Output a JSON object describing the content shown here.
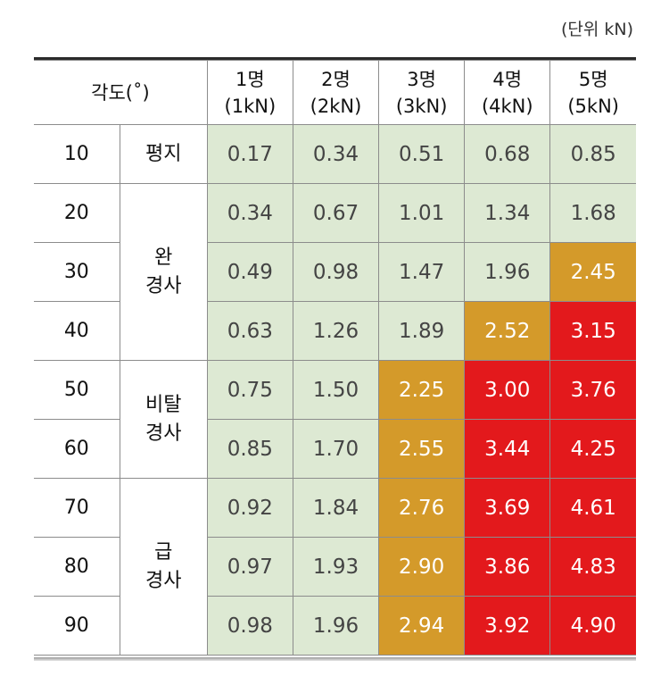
{
  "unit_label": "(단위 kN)",
  "header": {
    "angle_label": "각도(˚)",
    "persons": [
      {
        "count": "1명",
        "load": "(1kN)"
      },
      {
        "count": "2명",
        "load": "(2kN)"
      },
      {
        "count": "3명",
        "load": "(3kN)"
      },
      {
        "count": "4명",
        "load": "(4kN)"
      },
      {
        "count": "5명",
        "load": "(5kN)"
      }
    ]
  },
  "slopes": [
    {
      "label1": "평지",
      "label2": ""
    },
    {
      "label1": "완",
      "label2": "경사"
    },
    {
      "label1": "비탈",
      "label2": "경사"
    },
    {
      "label1": "급",
      "label2": "경사"
    }
  ],
  "rows": [
    {
      "angle": "10",
      "values": [
        "0.17",
        "0.34",
        "0.51",
        "0.68",
        "0.85"
      ]
    },
    {
      "angle": "20",
      "values": [
        "0.34",
        "0.67",
        "1.01",
        "1.34",
        "1.68"
      ]
    },
    {
      "angle": "30",
      "values": [
        "0.49",
        "0.98",
        "1.47",
        "1.96",
        "2.45"
      ]
    },
    {
      "angle": "40",
      "values": [
        "0.63",
        "1.26",
        "1.89",
        "2.52",
        "3.15"
      ]
    },
    {
      "angle": "50",
      "values": [
        "0.75",
        "1.50",
        "2.25",
        "3.00",
        "3.76"
      ]
    },
    {
      "angle": "60",
      "values": [
        "0.85",
        "1.70",
        "2.55",
        "3.44",
        "4.25"
      ]
    },
    {
      "angle": "70",
      "values": [
        "0.92",
        "1.84",
        "2.76",
        "3.69",
        "4.61"
      ]
    },
    {
      "angle": "80",
      "values": [
        "0.97",
        "1.93",
        "2.90",
        "3.86",
        "4.83"
      ]
    },
    {
      "angle": "90",
      "values": [
        "0.98",
        "1.96",
        "2.94",
        "3.92",
        "4.90"
      ]
    }
  ],
  "colors": {
    "safe": "#dde9d3",
    "caution": "#d49a2a",
    "danger": "#e3191c"
  }
}
